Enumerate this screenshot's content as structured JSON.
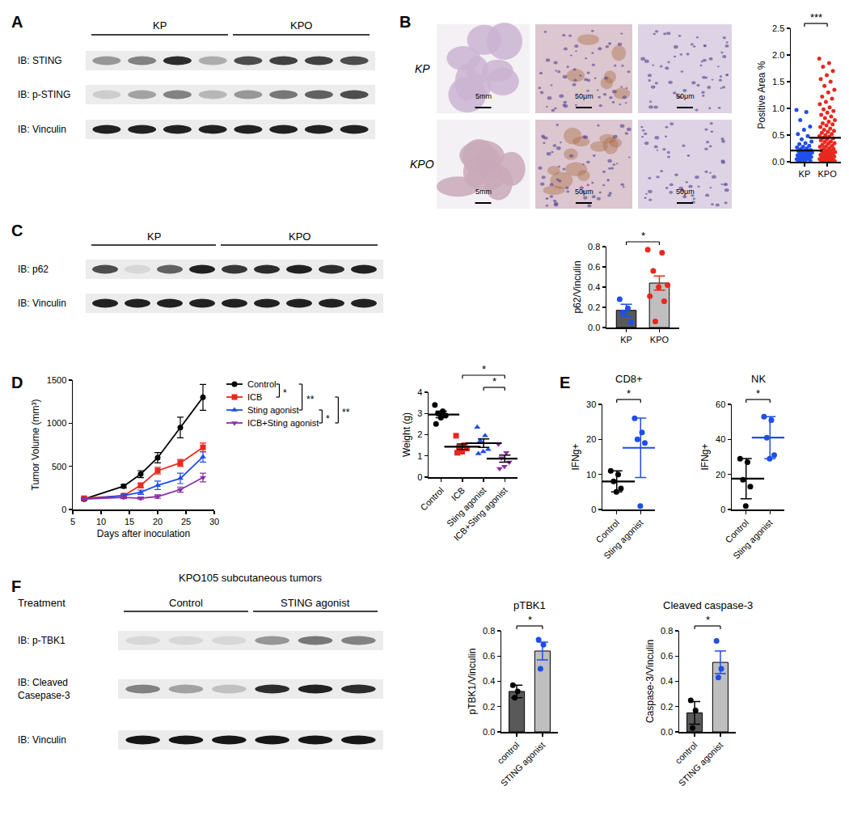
{
  "panel_labels": [
    "A",
    "B",
    "C",
    "D",
    "E",
    "F"
  ],
  "blots": [
    {
      "groups": [
        {
          "label": "KP",
          "lanes": 4
        },
        {
          "label": "KPO",
          "lanes": 4
        }
      ],
      "rows": [
        {
          "label": "IB: STING",
          "bands": [
            0.35,
            0.45,
            0.85,
            0.25,
            0.7,
            0.75,
            0.75,
            0.7
          ]
        },
        {
          "label": "IB: p-STING",
          "bands": [
            0.1,
            0.3,
            0.45,
            0.2,
            0.35,
            0.5,
            0.6,
            0.7
          ]
        },
        {
          "label": "IB: Vinculin",
          "bands": [
            0.9,
            0.9,
            0.9,
            0.9,
            0.9,
            0.9,
            0.9,
            0.9
          ]
        }
      ]
    },
    {
      "groups": [
        {
          "label": "KP",
          "lanes": 4
        },
        {
          "label": "KPO",
          "lanes": 5
        }
      ],
      "rows": [
        {
          "label": "IB: p62",
          "bands": [
            0.7,
            0.05,
            0.6,
            0.9,
            0.8,
            0.85,
            0.9,
            0.85,
            0.9
          ]
        },
        {
          "label": "IB: Vinculin",
          "bands": [
            0.9,
            0.9,
            0.9,
            0.9,
            0.9,
            0.9,
            0.9,
            0.9,
            0.9
          ]
        }
      ]
    },
    {
      "title": "KPO105 subcutaneous tumors",
      "header": "Treatment",
      "groups": [
        {
          "label": "Control",
          "lanes": 3
        },
        {
          "label": "STING agonist",
          "lanes": 3
        }
      ],
      "rows": [
        {
          "label": "IB: p-TBK1",
          "bands": [
            0.05,
            0.05,
            0.05,
            0.35,
            0.5,
            0.45
          ]
        },
        {
          "label": [
            "IB: Cleaved",
            "Casepase-3"
          ],
          "bands": [
            0.45,
            0.3,
            0.15,
            0.85,
            0.9,
            0.85
          ]
        },
        {
          "label": "IB: Vinculin",
          "bands": [
            0.95,
            0.95,
            0.95,
            0.95,
            0.95,
            0.95
          ]
        }
      ]
    }
  ],
  "ihc": {
    "rows": [
      "KP",
      "KPO"
    ],
    "scale_bars": [
      "5mm",
      "50μm",
      "50μm"
    ]
  },
  "chart_data": [
    {
      "type": "scatter",
      "y_label": "Positive Area %",
      "categories": [
        "KP",
        "KPO"
      ],
      "values": [
        0.21,
        0.45
      ],
      "color": "#000000",
      "points": [
        {
          "color": "#1f4ee8",
          "marker": "circle",
          "values": [
            0.97,
            0.93,
            0.78,
            0.66,
            0.6,
            0.52,
            0.48,
            0.42,
            0.38,
            0.35,
            0.33,
            0.3,
            0.28,
            0.27,
            0.25,
            0.24,
            0.22,
            0.21,
            0.2,
            0.19,
            0.18,
            0.17,
            0.16,
            0.15,
            0.14,
            0.13,
            0.12,
            0.11,
            0.1,
            0.09,
            0.08,
            0.07,
            0.07,
            0.06,
            0.05,
            0.04,
            0.03,
            0.02,
            0.02,
            0.01
          ]
        },
        {
          "color": "#e8281e",
          "marker": "circle",
          "values": [
            1.93,
            1.85,
            1.78,
            1.7,
            1.62,
            1.55,
            1.5,
            1.42,
            1.35,
            1.3,
            1.22,
            1.18,
            1.12,
            1.08,
            1.02,
            0.98,
            0.95,
            0.92,
            0.88,
            0.85,
            0.82,
            0.78,
            0.75,
            0.72,
            0.7,
            0.68,
            0.65,
            0.62,
            0.6,
            0.58,
            0.56,
            0.54,
            0.52,
            0.5,
            0.48,
            0.47,
            0.45,
            0.44,
            0.42,
            0.4,
            0.38,
            0.37,
            0.35,
            0.34,
            0.32,
            0.3,
            0.29,
            0.28,
            0.26,
            0.25,
            0.24,
            0.22,
            0.21,
            0.2,
            0.19,
            0.18,
            0.17,
            0.16,
            0.15,
            0.14,
            0.13,
            0.12,
            0.11,
            0.1,
            0.09,
            0.08,
            0.07,
            0.06,
            0.05,
            0.05,
            0.04,
            0.03,
            0.03,
            0.02,
            0.02,
            0.01,
            0.01,
            0.01,
            0.0,
            0.0
          ]
        }
      ],
      "ylim": [
        0,
        2.5
      ],
      "yticks": [
        {
          "value": 0,
          "label": "0.0"
        },
        0.5,
        {
          "value": 1,
          "label": "1.0"
        },
        1.5,
        {
          "value": 2,
          "label": "2.0"
        },
        2.5
      ],
      "significance": [
        {
          "from": "KP",
          "to": "KPO",
          "label": "***"
        }
      ]
    },
    {
      "type": "bar",
      "y_label": "p62/Vinculin",
      "categories": [
        "KP",
        "KPO"
      ],
      "values": [
        0.17,
        0.44
      ],
      "errors": [
        0.06,
        0.07
      ],
      "colors": [
        "#595959",
        "#bfbfbf"
      ],
      "points": [
        {
          "color": "#1f4ee8",
          "marker": "circle",
          "values": [
            0.28,
            0.19,
            0.15,
            0.05
          ]
        },
        {
          "color": "#e8281e",
          "marker": "circle",
          "values": [
            0.77,
            0.74,
            0.56,
            0.42,
            0.4,
            0.31,
            0.26,
            0.06
          ]
        }
      ],
      "ylim": [
        0,
        0.8
      ],
      "yticks": [
        {
          "value": 0,
          "label": "0.0"
        },
        0.2,
        0.4,
        0.6,
        0.8
      ],
      "significance": [
        {
          "from": "KP",
          "to": "KPO",
          "label": "*"
        }
      ]
    },
    {
      "type": "line",
      "x_label": "Days after inoculation",
      "y_label": "Tumor Volume (mm³)",
      "x": [
        7,
        14,
        17,
        20,
        24,
        28
      ],
      "xlim": [
        5,
        30
      ],
      "xticks": [
        5,
        10,
        15,
        20,
        25,
        30
      ],
      "ylim": [
        0,
        1500
      ],
      "yticks": [
        0,
        500,
        1000,
        1500
      ],
      "series": [
        {
          "name": "Control",
          "color": "#000000",
          "marker": "circle",
          "values": [
            120,
            270,
            410,
            600,
            950,
            1300
          ],
          "errors": [
            15,
            20,
            40,
            60,
            120,
            150
          ]
        },
        {
          "name": "ICB",
          "color": "#e8281e",
          "marker": "square",
          "values": [
            130,
            160,
            280,
            450,
            540,
            720
          ],
          "errors": [
            15,
            15,
            25,
            40,
            40,
            50
          ]
        },
        {
          "name": "Sting agonist",
          "color": "#1f4ee8",
          "marker": "triangle-up",
          "values": [
            120,
            160,
            200,
            280,
            360,
            610
          ],
          "errors": [
            10,
            20,
            25,
            50,
            60,
            60
          ]
        },
        {
          "name": "ICB+Sting agonist",
          "color": "#8b2fa8",
          "marker": "triangle-down",
          "values": [
            120,
            140,
            130,
            150,
            230,
            370
          ],
          "errors": [
            10,
            15,
            15,
            20,
            30,
            50
          ]
        }
      ],
      "significance": [
        {
          "from": "Control",
          "to": "ICB",
          "label": "*"
        },
        {
          "from": "Control",
          "to": "Sting agonist",
          "label": "**"
        },
        {
          "from": "Sting agonist",
          "to": "ICB+Sting agonist",
          "label": "*"
        },
        {
          "from": "ICB",
          "to": "ICB+Sting agonist",
          "label": "**"
        }
      ]
    },
    {
      "type": "scatter",
      "y_label": "Weight (g)",
      "categories": [
        "Control",
        "ICB",
        "Sting agonist",
        "ICB+Sting agonist"
      ],
      "values": [
        2.95,
        1.43,
        1.6,
        0.87
      ],
      "errors": [
        0.15,
        0.13,
        0.2,
        0.17
      ],
      "color": "#000000",
      "points": [
        {
          "color": "#000000",
          "marker": "circle",
          "values": [
            3.4,
            3.1,
            3.0,
            2.9,
            2.8,
            2.5
          ]
        },
        {
          "color": "#e8281e",
          "marker": "square",
          "values": [
            1.95,
            1.5,
            1.4,
            1.35,
            1.2,
            1.15
          ]
        },
        {
          "color": "#1f4ee8",
          "marker": "triangle-up",
          "values": [
            2.35,
            1.95,
            1.7,
            1.3,
            1.2,
            1.1
          ]
        },
        {
          "color": "#8b2fa8",
          "marker": "triangle-down",
          "values": [
            1.55,
            1.15,
            0.9,
            0.7,
            0.5,
            0.4
          ]
        }
      ],
      "ylim": [
        0,
        4
      ],
      "yticks": [
        0,
        1,
        2,
        3,
        4
      ],
      "significance": [
        {
          "from": "ICB",
          "to": "ICB+Sting agonist",
          "label": "*"
        },
        {
          "from": "Sting agonist",
          "to": "ICB+Sting agonist",
          "label": "*"
        }
      ]
    },
    {
      "type": "scatter",
      "title": "CD8+",
      "y_label": "IFNg+",
      "categories": [
        "Control",
        "Sting agonist"
      ],
      "values": [
        8,
        17.6
      ],
      "errors": [
        3,
        8.5
      ],
      "points": [
        {
          "color": "#000000",
          "marker": "circle",
          "values": [
            11,
            10,
            8,
            6,
            5
          ]
        },
        {
          "color": "#1f4ee8",
          "marker": "circle",
          "values": [
            26,
            22,
            20,
            19,
            1
          ]
        }
      ],
      "ylim": [
        0,
        30
      ],
      "yticks": [
        0,
        10,
        20,
        30
      ],
      "significance": [
        {
          "from": "Control",
          "to": "Sting agonist",
          "label": "*"
        }
      ]
    },
    {
      "type": "scatter",
      "title": "NK",
      "y_label": "IFNg+",
      "categories": [
        "Control",
        "Sting agonist"
      ],
      "values": [
        17.6,
        41
      ],
      "errors": [
        11.5,
        12
      ],
      "points": [
        {
          "color": "#000000",
          "marker": "circle",
          "values": [
            29,
            27,
            17,
            13,
            2
          ]
        },
        {
          "color": "#1f4ee8",
          "marker": "circle",
          "values": [
            53,
            51,
            41,
            31,
            29
          ]
        }
      ],
      "ylim": [
        0,
        60
      ],
      "yticks": [
        0,
        20,
        40,
        60
      ],
      "significance": [
        {
          "from": "Control",
          "to": "Sting agonist",
          "label": "*"
        }
      ]
    },
    {
      "type": "bar",
      "title": "pTBK1",
      "y_label": "pTBK1/Vinculin",
      "categories": [
        "control",
        "STING agonist"
      ],
      "values": [
        0.32,
        0.64
      ],
      "errors": [
        0.05,
        0.07
      ],
      "colors": [
        "#595959",
        "#bfbfbf"
      ],
      "points": [
        {
          "color": "#000000",
          "marker": "circle",
          "values": [
            0.37,
            0.32,
            0.27
          ]
        },
        {
          "color": "#1f4ee8",
          "marker": "circle",
          "values": [
            0.73,
            0.69,
            0.5
          ]
        }
      ],
      "ylim": [
        0,
        0.8
      ],
      "yticks": [
        {
          "value": 0,
          "label": "0.0"
        },
        0.2,
        0.4,
        0.6,
        0.8
      ],
      "significance": [
        {
          "from": "control",
          "to": "STING agonist",
          "label": "*"
        }
      ]
    },
    {
      "type": "bar",
      "title": "Cleaved caspase-3",
      "y_label": "Caspase-3/Vinculin",
      "categories": [
        "control",
        "STING agonist"
      ],
      "values": [
        0.15,
        0.55
      ],
      "errors": [
        0.09,
        0.09
      ],
      "colors": [
        "#595959",
        "#bfbfbf"
      ],
      "points": [
        {
          "color": "#000000",
          "marker": "circle",
          "values": [
            0.25,
            0.17,
            0.03
          ]
        },
        {
          "color": "#1f4ee8",
          "marker": "circle",
          "values": [
            0.72,
            0.5,
            0.43
          ]
        }
      ],
      "ylim": [
        0,
        0.8
      ],
      "yticks": [
        {
          "value": 0,
          "label": "0.0"
        },
        0.2,
        0.4,
        0.6,
        0.8
      ],
      "significance": [
        {
          "from": "control",
          "to": "STING agonist",
          "label": "*"
        }
      ]
    }
  ]
}
